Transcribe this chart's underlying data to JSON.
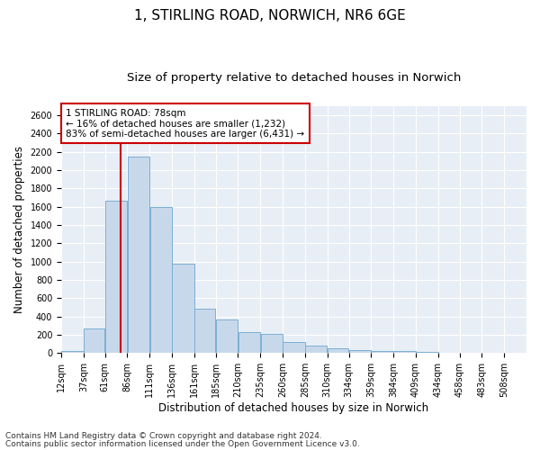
{
  "title_line1": "1, STIRLING ROAD, NORWICH, NR6 6GE",
  "title_line2": "Size of property relative to detached houses in Norwich",
  "xlabel": "Distribution of detached houses by size in Norwich",
  "ylabel": "Number of detached properties",
  "annotation_title": "1 STIRLING ROAD: 78sqm",
  "annotation_line2": "← 16% of detached houses are smaller (1,232)",
  "annotation_line3": "83% of semi-detached houses are larger (6,431) →",
  "footnote1": "Contains HM Land Registry data © Crown copyright and database right 2024.",
  "footnote2": "Contains public sector information licensed under the Open Government Licence v3.0.",
  "property_size": 78,
  "bar_color": "#c8d8eb",
  "bar_edge_color": "#7bafd4",
  "vline_color": "#cc0000",
  "annotation_box_color": "#cc0000",
  "background_color": "#e8eef5",
  "grid_color": "white",
  "categories": [
    "12sqm",
    "37sqm",
    "61sqm",
    "86sqm",
    "111sqm",
    "136sqm",
    "161sqm",
    "185sqm",
    "210sqm",
    "235sqm",
    "260sqm",
    "285sqm",
    "310sqm",
    "334sqm",
    "359sqm",
    "384sqm",
    "409sqm",
    "434sqm",
    "458sqm",
    "483sqm",
    "508sqm"
  ],
  "bin_edges": [
    12,
    37,
    61,
    86,
    111,
    136,
    161,
    185,
    210,
    235,
    260,
    285,
    310,
    334,
    359,
    384,
    409,
    434,
    458,
    483,
    508
  ],
  "values": [
    25,
    270,
    1670,
    2150,
    1600,
    975,
    490,
    370,
    225,
    210,
    120,
    80,
    50,
    30,
    20,
    20,
    10,
    5,
    5,
    5,
    2
  ],
  "ylim": [
    0,
    2700
  ],
  "yticks": [
    0,
    200,
    400,
    600,
    800,
    1000,
    1200,
    1400,
    1600,
    1800,
    2000,
    2200,
    2400,
    2600
  ],
  "title_fontsize": 11,
  "subtitle_fontsize": 9.5,
  "label_fontsize": 8.5,
  "tick_fontsize": 7,
  "annotation_fontsize": 7.5,
  "footnote_fontsize": 6.5
}
